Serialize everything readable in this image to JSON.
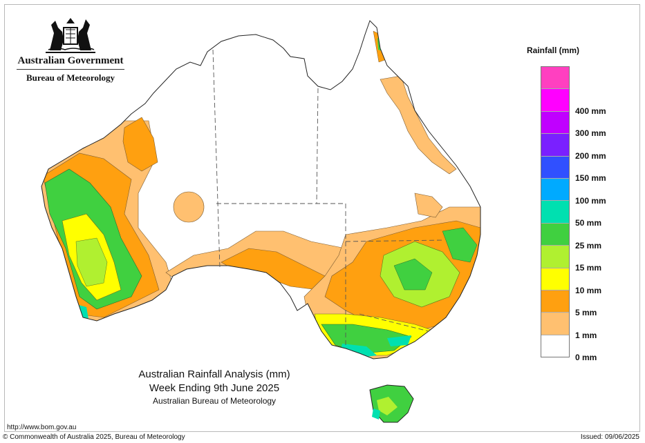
{
  "header": {
    "gov_name": "Australian Government",
    "agency_name": "Bureau of Meteorology"
  },
  "map": {
    "title": "Australian Rainfall Analysis (mm)",
    "period": "Week Ending 9th June 2025",
    "source": "Australian Bureau of Meteorology"
  },
  "legend": {
    "title": "Rainfall (mm)",
    "categories": [
      {
        "label": "",
        "color": "#ff40c0"
      },
      {
        "label": "400 mm",
        "color": "#ff00ff"
      },
      {
        "label": "300 mm",
        "color": "#c000ff"
      },
      {
        "label": "200 mm",
        "color": "#7a20ff"
      },
      {
        "label": "150 mm",
        "color": "#3050ff"
      },
      {
        "label": "100 mm",
        "color": "#00aaff"
      },
      {
        "label": "50 mm",
        "color": "#00e0b0"
      },
      {
        "label": "25 mm",
        "color": "#40d040"
      },
      {
        "label": "15 mm",
        "color": "#b0f030"
      },
      {
        "label": "10 mm",
        "color": "#ffff00"
      },
      {
        "label": "5 mm",
        "color": "#ffa010"
      },
      {
        "label": "1 mm",
        "color": "#ffc070"
      },
      {
        "label": "0 mm",
        "color": "#ffffff"
      }
    ]
  },
  "footer": {
    "url": "http://www.bom.gov.au",
    "copyright": "© Commonwealth of Australia 2025, Bureau of Meteorology",
    "issued": "Issued: 09/06/2025"
  }
}
